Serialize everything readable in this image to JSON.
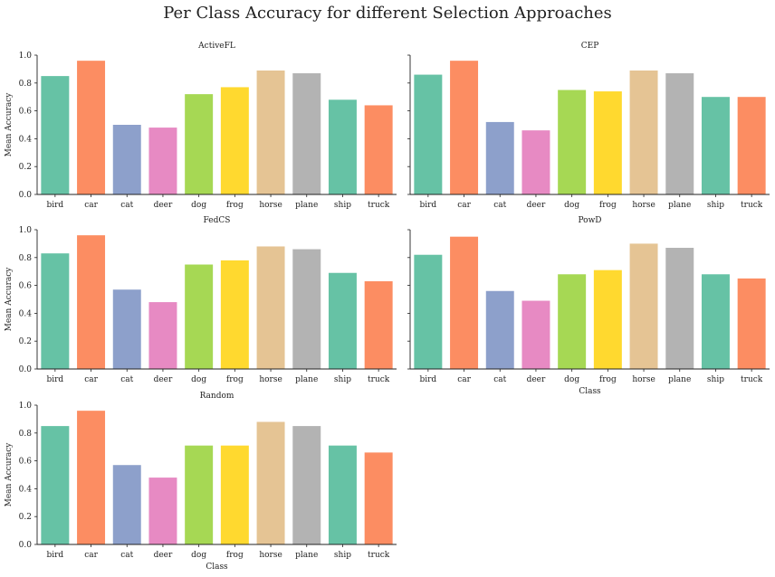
{
  "title": "Per Class Accuracy for different Selection Approaches",
  "colors": {
    "palette": [
      "#66c2a5",
      "#fc8d62",
      "#8da0cb",
      "#e78ac3",
      "#a6d854",
      "#ffd92f",
      "#e5c494",
      "#b3b3b3",
      "#66c2a5",
      "#fc8d62"
    ],
    "axis": "#222222"
  },
  "chart_data": [
    {
      "type": "bar",
      "title": "ActiveFL",
      "categories": [
        "bird",
        "car",
        "cat",
        "deer",
        "dog",
        "frog",
        "horse",
        "plane",
        "ship",
        "truck"
      ],
      "values": [
        0.85,
        0.96,
        0.5,
        0.48,
        0.72,
        0.77,
        0.89,
        0.87,
        0.68,
        0.64
      ],
      "xlabel": "",
      "ylabel": "Mean Accuracy",
      "ylim": [
        0,
        1.0
      ],
      "yticks": [
        "0.0",
        "0.2",
        "0.4",
        "0.6",
        "0.8",
        "1.0"
      ],
      "grid": false
    },
    {
      "type": "bar",
      "title": "CEP",
      "categories": [
        "bird",
        "car",
        "cat",
        "deer",
        "dog",
        "frog",
        "horse",
        "plane",
        "ship",
        "truck"
      ],
      "values": [
        0.86,
        0.96,
        0.52,
        0.46,
        0.75,
        0.74,
        0.89,
        0.87,
        0.7,
        0.7
      ],
      "xlabel": "",
      "ylabel": "",
      "ylim": [
        0,
        1.0
      ],
      "yticks": [],
      "grid": false
    },
    {
      "type": "bar",
      "title": "FedCS",
      "categories": [
        "bird",
        "car",
        "cat",
        "deer",
        "dog",
        "frog",
        "horse",
        "plane",
        "ship",
        "truck"
      ],
      "values": [
        0.83,
        0.96,
        0.57,
        0.48,
        0.75,
        0.78,
        0.88,
        0.86,
        0.69,
        0.63
      ],
      "xlabel": "",
      "ylabel": "Mean Accuracy",
      "ylim": [
        0,
        1.0
      ],
      "yticks": [
        "0.0",
        "0.2",
        "0.4",
        "0.6",
        "0.8",
        "1.0"
      ],
      "grid": false
    },
    {
      "type": "bar",
      "title": "PowD",
      "categories": [
        "bird",
        "car",
        "cat",
        "deer",
        "dog",
        "frog",
        "horse",
        "plane",
        "ship",
        "truck"
      ],
      "values": [
        0.82,
        0.95,
        0.56,
        0.49,
        0.68,
        0.71,
        0.9,
        0.87,
        0.68,
        0.65
      ],
      "xlabel": "Class",
      "ylabel": "",
      "ylim": [
        0,
        1.0
      ],
      "yticks": [],
      "grid": false
    },
    {
      "type": "bar",
      "title": "Random",
      "categories": [
        "bird",
        "car",
        "cat",
        "deer",
        "dog",
        "frog",
        "horse",
        "plane",
        "ship",
        "truck"
      ],
      "values": [
        0.85,
        0.96,
        0.57,
        0.48,
        0.71,
        0.71,
        0.88,
        0.85,
        0.71,
        0.66
      ],
      "xlabel": "Class",
      "ylabel": "Mean Accuracy",
      "ylim": [
        0,
        1.0
      ],
      "yticks": [
        "0.0",
        "0.2",
        "0.4",
        "0.6",
        "0.8",
        "1.0"
      ],
      "grid": false
    }
  ]
}
